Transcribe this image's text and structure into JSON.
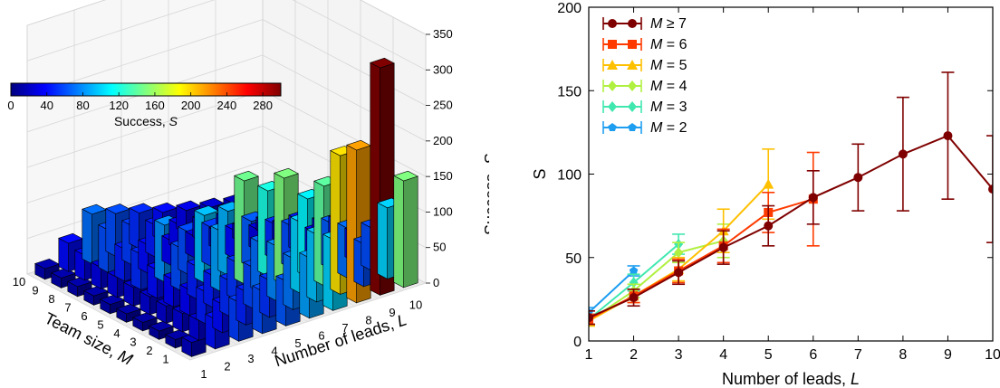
{
  "chart_data": [
    {
      "type": "bar",
      "variant": "3d-bar",
      "xlabel_prefix": "Team size, ",
      "xlabel_var": "M",
      "ylabel_prefix": "Number of leads, ",
      "ylabel_var": "L",
      "zlabel_prefix": "Success, ",
      "zlabel_var": "S",
      "m_ticks": [
        "1",
        "2",
        "3",
        "4",
        "5",
        "6",
        "7",
        "8",
        "9",
        "10"
      ],
      "l_ticks": [
        "1",
        "2",
        "3",
        "4",
        "5",
        "6",
        "7",
        "8",
        "9",
        "10"
      ],
      "z_ticks": [
        "0",
        "50",
        "100",
        "150",
        "200",
        "250",
        "300",
        "350"
      ],
      "zlim": [
        0,
        350
      ],
      "colorbar": {
        "label_prefix": "Success, ",
        "label_var": "S",
        "ticks": [
          "0",
          "40",
          "80",
          "120",
          "160",
          "200",
          "240",
          "280"
        ],
        "range": [
          0,
          300
        ],
        "colormap": "jet"
      },
      "bars": [
        {
          "m": 1,
          "l": 1,
          "s": 20
        },
        {
          "m": 1,
          "l": 2,
          "s": 42
        },
        {
          "m": 1,
          "l": 3,
          "s": 55
        },
        {
          "m": 1,
          "l": 4,
          "s": 60
        },
        {
          "m": 1,
          "l": 5,
          "s": 63
        },
        {
          "m": 1,
          "l": 6,
          "s": 85
        },
        {
          "m": 1,
          "l": 7,
          "s": 100
        },
        {
          "m": 1,
          "l": 8,
          "s": 215
        },
        {
          "m": 1,
          "l": 9,
          "s": 320
        },
        {
          "m": 1,
          "l": 10,
          "s": 150
        },
        {
          "m": 2,
          "l": 1,
          "s": 12
        },
        {
          "m": 2,
          "l": 2,
          "s": 28
        },
        {
          "m": 2,
          "l": 3,
          "s": 40
        },
        {
          "m": 2,
          "l": 4,
          "s": 47
        },
        {
          "m": 2,
          "l": 5,
          "s": 52
        },
        {
          "m": 2,
          "l": 6,
          "s": 72
        },
        {
          "m": 2,
          "l": 7,
          "s": 95
        },
        {
          "m": 2,
          "l": 8,
          "s": 195
        },
        {
          "m": 2,
          "l": 9,
          "s": 60
        },
        {
          "m": 2,
          "l": 10,
          "s": 100
        },
        {
          "m": 3,
          "l": 1,
          "s": 12
        },
        {
          "m": 3,
          "l": 2,
          "s": 26
        },
        {
          "m": 3,
          "l": 3,
          "s": 45
        },
        {
          "m": 3,
          "l": 4,
          "s": 50
        },
        {
          "m": 3,
          "l": 5,
          "s": 58
        },
        {
          "m": 3,
          "l": 6,
          "s": 77
        },
        {
          "m": 3,
          "l": 7,
          "s": 100
        },
        {
          "m": 3,
          "l": 8,
          "s": 140
        },
        {
          "m": 3,
          "l": 9,
          "s": 70
        },
        {
          "m": 3,
          "l": 10,
          "s": 60
        },
        {
          "m": 4,
          "l": 1,
          "s": 12
        },
        {
          "m": 4,
          "l": 2,
          "s": 24
        },
        {
          "m": 4,
          "l": 3,
          "s": 36
        },
        {
          "m": 4,
          "l": 4,
          "s": 45
        },
        {
          "m": 4,
          "l": 5,
          "s": 53
        },
        {
          "m": 4,
          "l": 6,
          "s": 70
        },
        {
          "m": 4,
          "l": 7,
          "s": 150
        },
        {
          "m": 4,
          "l": 8,
          "s": 110
        },
        {
          "m": 4,
          "l": 9,
          "s": 65
        },
        {
          "m": 4,
          "l": 10,
          "s": 40
        },
        {
          "m": 5,
          "l": 1,
          "s": 12
        },
        {
          "m": 5,
          "l": 2,
          "s": 25
        },
        {
          "m": 5,
          "l": 3,
          "s": 38
        },
        {
          "m": 5,
          "l": 4,
          "s": 46
        },
        {
          "m": 5,
          "l": 5,
          "s": 85
        },
        {
          "m": 5,
          "l": 6,
          "s": 145
        },
        {
          "m": 5,
          "l": 7,
          "s": 120
        },
        {
          "m": 5,
          "l": 8,
          "s": 60
        },
        {
          "m": 5,
          "l": 9,
          "s": 40
        },
        {
          "m": 5,
          "l": 10,
          "s": 45
        },
        {
          "m": 6,
          "l": 1,
          "s": 13
        },
        {
          "m": 6,
          "l": 2,
          "s": 26
        },
        {
          "m": 6,
          "l": 3,
          "s": 40
        },
        {
          "m": 6,
          "l": 4,
          "s": 60
        },
        {
          "m": 6,
          "l": 5,
          "s": 95
        },
        {
          "m": 6,
          "l": 6,
          "s": 90
        },
        {
          "m": 6,
          "l": 7,
          "s": 65
        },
        {
          "m": 6,
          "l": 8,
          "s": 50
        },
        {
          "m": 6,
          "l": 9,
          "s": 45
        },
        {
          "m": 6,
          "l": 10,
          "s": 30
        },
        {
          "m": 7,
          "l": 1,
          "s": 13
        },
        {
          "m": 7,
          "l": 2,
          "s": 28
        },
        {
          "m": 7,
          "l": 3,
          "s": 50
        },
        {
          "m": 7,
          "l": 4,
          "s": 80
        },
        {
          "m": 7,
          "l": 5,
          "s": 60
        },
        {
          "m": 7,
          "l": 6,
          "s": 55
        },
        {
          "m": 7,
          "l": 7,
          "s": 40
        },
        {
          "m": 7,
          "l": 8,
          "s": 30
        },
        {
          "m": 7,
          "l": 9,
          "s": 25
        },
        {
          "m": 7,
          "l": 10,
          "s": 20
        },
        {
          "m": 8,
          "l": 1,
          "s": 14
        },
        {
          "m": 8,
          "l": 2,
          "s": 30
        },
        {
          "m": 8,
          "l": 3,
          "s": 45
        },
        {
          "m": 8,
          "l": 4,
          "s": 40
        },
        {
          "m": 8,
          "l": 5,
          "s": 35
        },
        {
          "m": 8,
          "l": 6,
          "s": 30
        },
        {
          "m": 8,
          "l": 7,
          "s": 25
        },
        {
          "m": 8,
          "l": 8,
          "s": 20
        },
        {
          "m": 8,
          "l": 9,
          "s": 18
        },
        {
          "m": 8,
          "l": 10,
          "s": 15
        },
        {
          "m": 9,
          "l": 1,
          "s": 14
        },
        {
          "m": 9,
          "l": 2,
          "s": 35
        },
        {
          "m": 9,
          "l": 3,
          "s": 60
        },
        {
          "m": 9,
          "l": 4,
          "s": 55
        },
        {
          "m": 9,
          "l": 5,
          "s": 45
        },
        {
          "m": 9,
          "l": 6,
          "s": 35
        },
        {
          "m": 9,
          "l": 7,
          "s": 28
        },
        {
          "m": 9,
          "l": 8,
          "s": 22
        },
        {
          "m": 9,
          "l": 9,
          "s": 18
        },
        {
          "m": 9,
          "l": 10,
          "s": 15
        },
        {
          "m": 10,
          "l": 1,
          "s": 15
        },
        {
          "m": 10,
          "l": 2,
          "s": 40
        },
        {
          "m": 10,
          "l": 3,
          "s": 70
        },
        {
          "m": 10,
          "l": 4,
          "s": 60
        },
        {
          "m": 10,
          "l": 5,
          "s": 50
        },
        {
          "m": 10,
          "l": 6,
          "s": 40
        },
        {
          "m": 10,
          "l": 7,
          "s": 32
        },
        {
          "m": 10,
          "l": 8,
          "s": 25
        },
        {
          "m": 10,
          "l": 9,
          "s": 20
        },
        {
          "m": 10,
          "l": 10,
          "s": 18
        }
      ]
    },
    {
      "type": "line",
      "errorbars": true,
      "xlabel_prefix": "Number of leads, ",
      "xlabel_var": "L",
      "ylabel": "S",
      "xlim": [
        1,
        10
      ],
      "ylim": [
        0,
        200
      ],
      "x_ticks": [
        "1",
        "2",
        "3",
        "4",
        "5",
        "6",
        "7",
        "8",
        "9",
        "10"
      ],
      "y_ticks": [
        "0",
        "50",
        "100",
        "150",
        "200"
      ],
      "grid": false,
      "legend_position": "top-left",
      "series": [
        {
          "legend_var": "M",
          "legend_op": " ≥ ",
          "legend_val": "7",
          "color": "#7f0000",
          "marker": "circle",
          "x": [
            1,
            2,
            3,
            4,
            5,
            6,
            7,
            8,
            9,
            10
          ],
          "y": [
            14,
            26,
            41,
            56,
            69,
            86,
            98,
            112,
            123,
            91
          ],
          "err": [
            4,
            5,
            7,
            10,
            12,
            16,
            20,
            34,
            38,
            32
          ]
        },
        {
          "legend_var": "M",
          "legend_op": " = ",
          "legend_val": "6",
          "color": "#ff3a00",
          "marker": "square",
          "x": [
            1,
            2,
            3,
            4,
            5,
            6
          ],
          "y": [
            13,
            27,
            42,
            57,
            77,
            85
          ],
          "err": [
            3,
            4,
            7,
            10,
            12,
            28
          ]
        },
        {
          "legend_var": "M",
          "legend_op": " = ",
          "legend_val": "5",
          "color": "#ffc000",
          "marker": "triangle",
          "x": [
            1,
            2,
            3,
            4,
            5
          ],
          "y": [
            12,
            27,
            43,
            66,
            94
          ],
          "err": [
            3,
            4,
            7,
            13,
            21
          ]
        },
        {
          "legend_var": "M",
          "legend_op": " = ",
          "legend_val": "4",
          "color": "#b0f040",
          "marker": "diamond",
          "x": [
            1,
            2,
            3,
            4
          ],
          "y": [
            12,
            30,
            53,
            60
          ],
          "err": [
            3,
            4,
            6,
            10
          ]
        },
        {
          "legend_var": "M",
          "legend_op": " = ",
          "legend_val": "3",
          "color": "#40e8b0",
          "marker": "diamond",
          "x": [
            1,
            2,
            3
          ],
          "y": [
            13,
            35,
            58
          ],
          "err": [
            3,
            5,
            6
          ]
        },
        {
          "legend_var": "M",
          "legend_op": " = ",
          "legend_val": "2",
          "color": "#1e9ef0",
          "marker": "pentagon",
          "x": [
            1,
            2
          ],
          "y": [
            17,
            42
          ],
          "err": [
            3,
            3
          ]
        }
      ]
    }
  ]
}
